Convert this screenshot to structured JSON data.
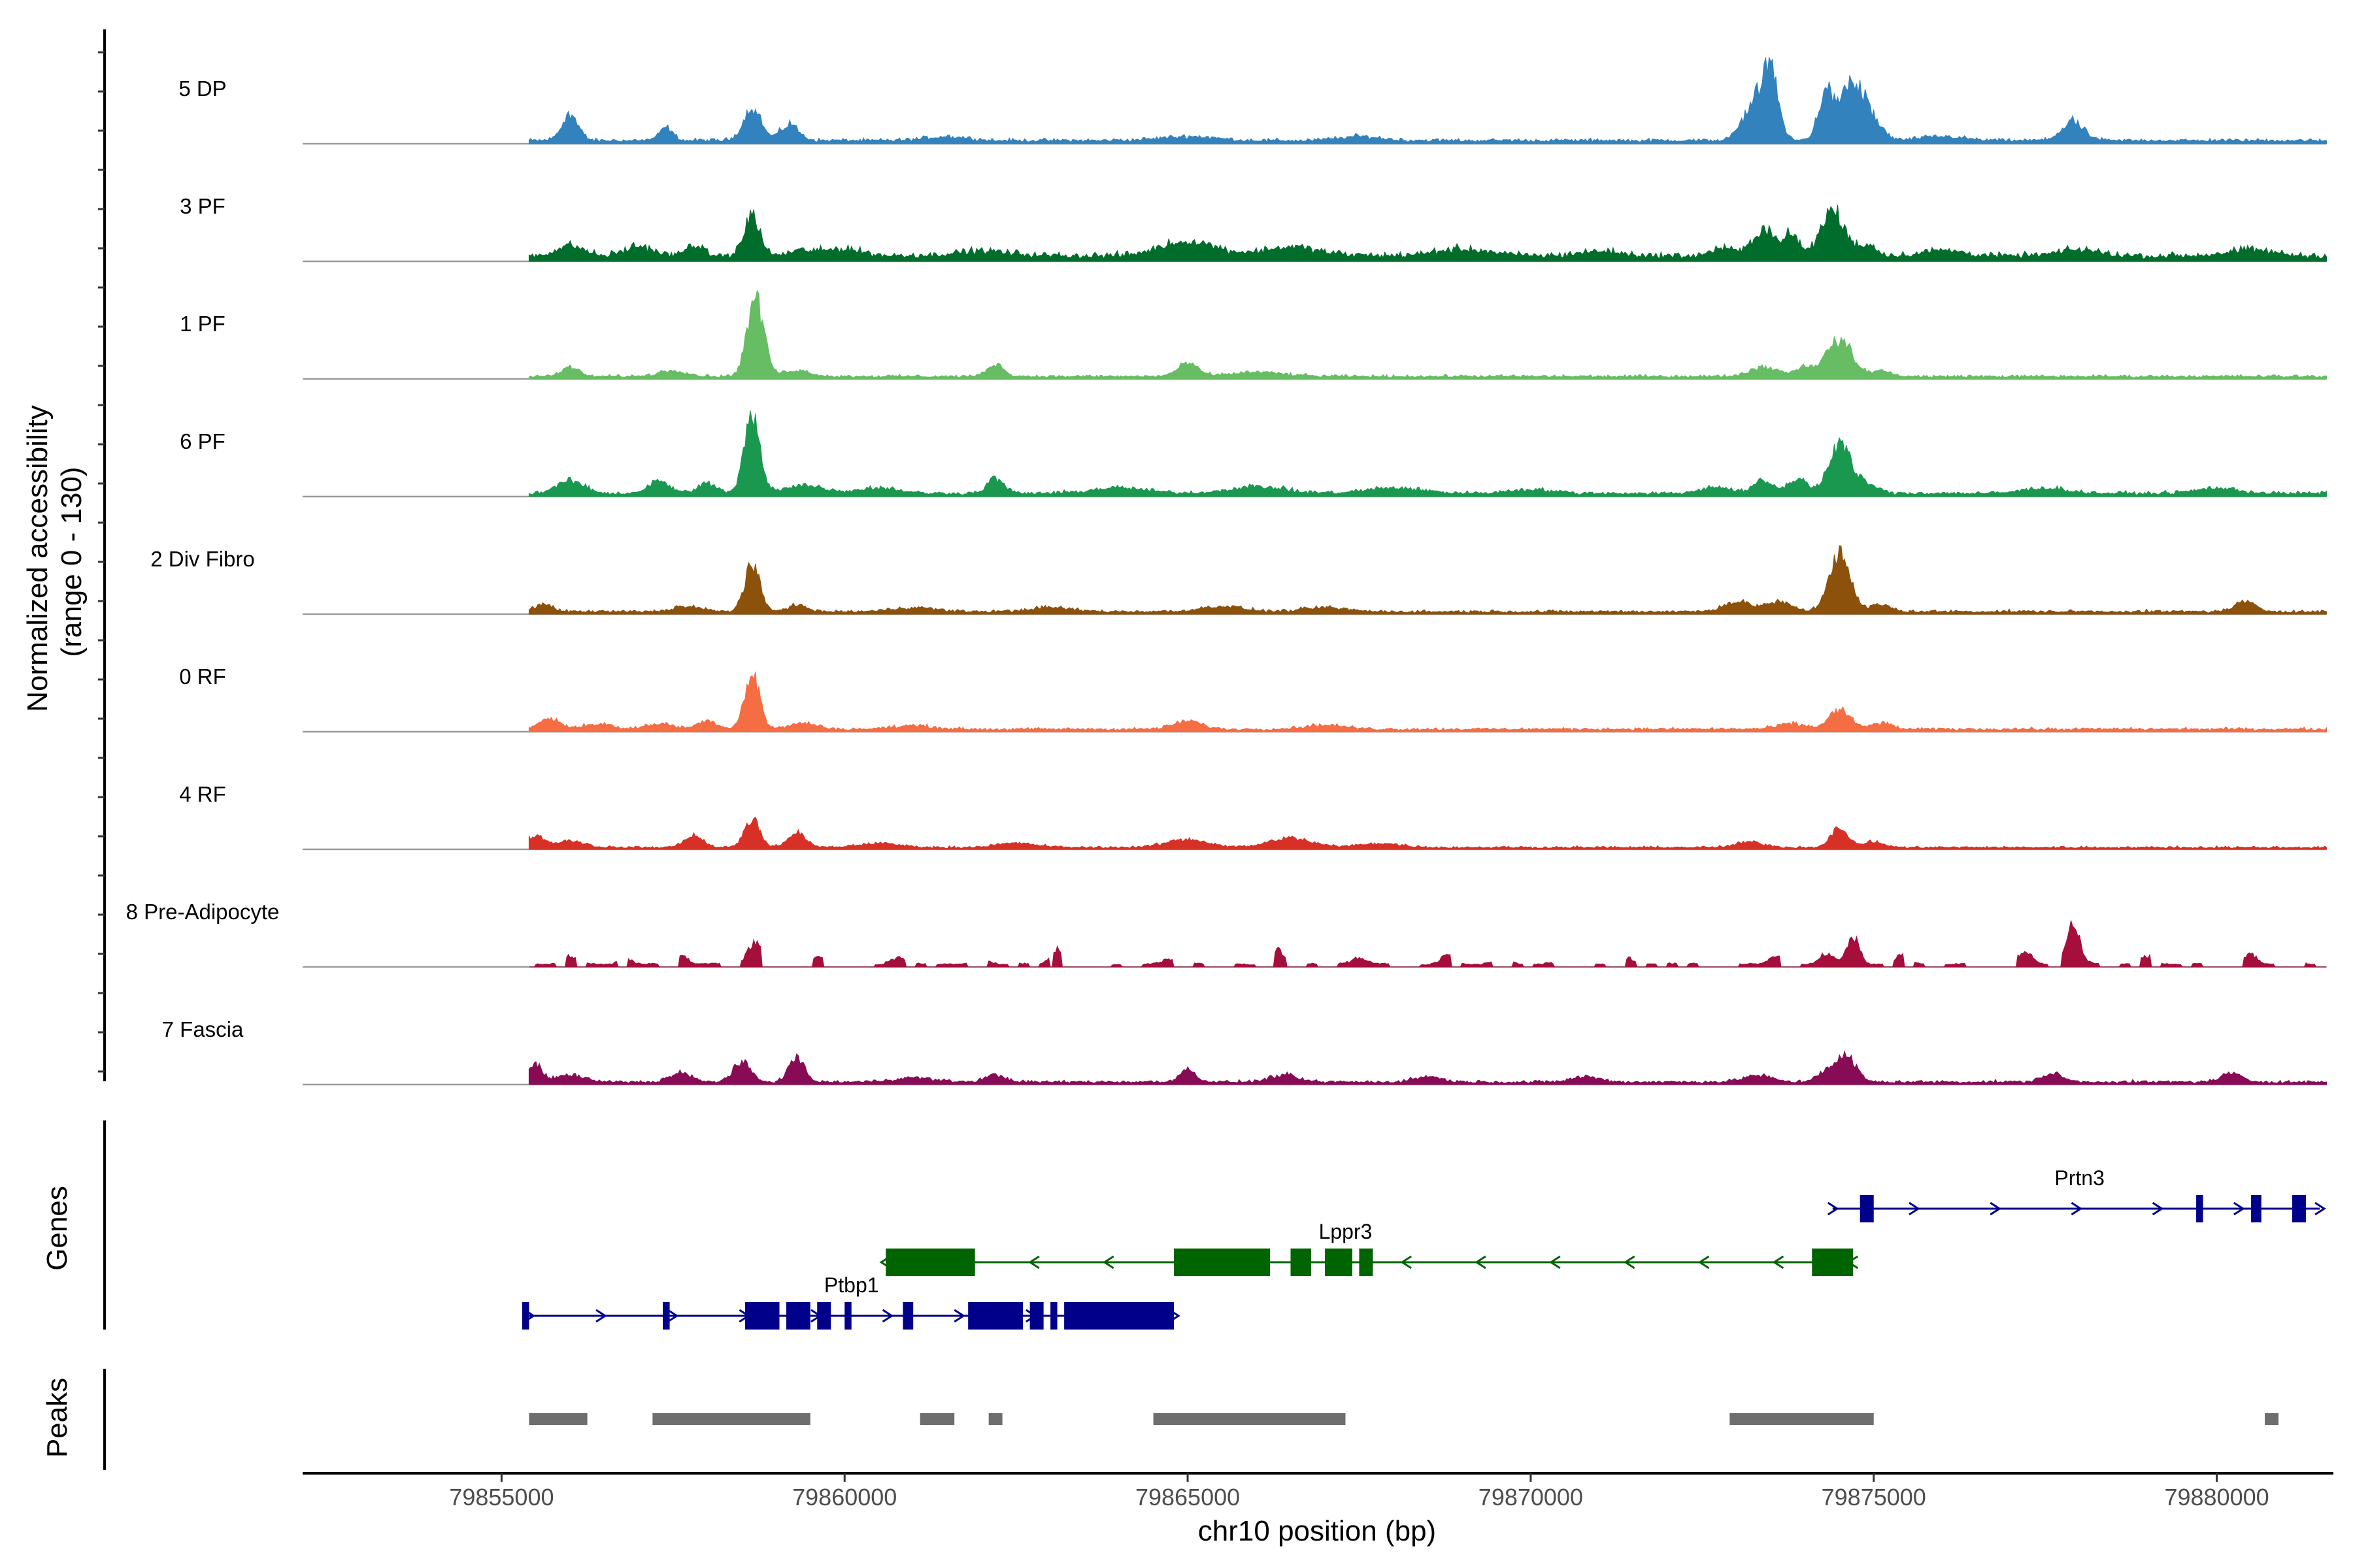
{
  "chart_data": {
    "type": "area",
    "title": "",
    "xlabel": "chr10 position (bp)",
    "ylabel_line1": "Normalized accessibility",
    "ylabel_line2": "(range 0 - 130)",
    "y_range": [
      0,
      130
    ],
    "x_range": [
      79852100,
      79881700
    ],
    "x_ticks": [
      79855000,
      79860000,
      79865000,
      79870000,
      79875000,
      79880000
    ],
    "x_tick_labels": [
      "79855000",
      "79860000",
      "79865000",
      "79870000",
      "79875000",
      "79880000"
    ],
    "signal_start": 79855400,
    "signal_end": 79881600,
    "tracks": [
      {
        "name": "5 DP",
        "color": "#3182bd",
        "baseline": 4,
        "noise": 2,
        "sparse": false,
        "peaks": [
          [
            79856000,
            38,
            120
          ],
          [
            79857400,
            18,
            100
          ],
          [
            79858650,
            48,
            130
          ],
          [
            79859200,
            24,
            130
          ],
          [
            79861500,
            6,
            300
          ],
          [
            79865000,
            6,
            400
          ],
          [
            79867500,
            6,
            300
          ],
          [
            79873300,
            60,
            180
          ],
          [
            79873500,
            75,
            110
          ],
          [
            79874300,
            70,
            110
          ],
          [
            79874700,
            85,
            170
          ],
          [
            79875000,
            20,
            150
          ],
          [
            79876000,
            6,
            300
          ],
          [
            79877900,
            28,
            160
          ]
        ]
      },
      {
        "name": "3 PF",
        "color": "#006d2c",
        "baseline": 7,
        "noise": 3,
        "sparse": false,
        "peaks": [
          [
            79856000,
            15,
            200
          ],
          [
            79857000,
            14,
            200
          ],
          [
            79857800,
            16,
            120
          ],
          [
            79858650,
            60,
            110
          ],
          [
            79859400,
            8,
            200
          ],
          [
            79860000,
            10,
            250
          ],
          [
            79862000,
            7,
            400
          ],
          [
            79865000,
            22,
            400
          ],
          [
            79866500,
            13,
            400
          ],
          [
            79869000,
            10,
            400
          ],
          [
            79871000,
            7,
            300
          ],
          [
            79872800,
            12,
            150
          ],
          [
            79873400,
            38,
            170
          ],
          [
            79873800,
            30,
            110
          ],
          [
            79874400,
            65,
            170
          ],
          [
            79874900,
            15,
            150
          ],
          [
            79876000,
            8,
            300
          ],
          [
            79878000,
            9,
            300
          ],
          [
            79880500,
            9,
            300
          ]
        ]
      },
      {
        "name": "1 PF",
        "color": "#66bd63",
        "baseline": 3,
        "noise": 2,
        "sparse": false,
        "peaks": [
          [
            79856000,
            14,
            120
          ],
          [
            79857500,
            9,
            200
          ],
          [
            79858700,
            115,
            120
          ],
          [
            79859300,
            9,
            200
          ],
          [
            79862200,
            18,
            120
          ],
          [
            79865000,
            18,
            150
          ],
          [
            79866000,
            6,
            400
          ],
          [
            79873400,
            14,
            200
          ],
          [
            79874000,
            14,
            150
          ],
          [
            79874500,
            55,
            180
          ],
          [
            79875100,
            8,
            150
          ]
        ]
      },
      {
        "name": "6 PF",
        "color": "#1a9850",
        "baseline": 4,
        "noise": 2,
        "sparse": false,
        "peaks": [
          [
            79856000,
            18,
            200
          ],
          [
            79857300,
            18,
            150
          ],
          [
            79858000,
            14,
            150
          ],
          [
            79858650,
            115,
            110
          ],
          [
            79859400,
            12,
            300
          ],
          [
            79860500,
            8,
            300
          ],
          [
            79862200,
            22,
            120
          ],
          [
            79864000,
            8,
            400
          ],
          [
            79866000,
            10,
            400
          ],
          [
            79868000,
            8,
            400
          ],
          [
            79870000,
            6,
            300
          ],
          [
            79872700,
            10,
            200
          ],
          [
            79873400,
            18,
            150
          ],
          [
            79873900,
            22,
            130
          ],
          [
            79874500,
            72,
            160
          ],
          [
            79874900,
            14,
            150
          ],
          [
            79877500,
            8,
            300
          ],
          [
            79880000,
            8,
            300
          ]
        ]
      },
      {
        "name": "2 Div Fibro",
        "color": "#8c510a",
        "baseline": 3,
        "noise": 2,
        "sparse": false,
        "peaks": [
          [
            79855600,
            10,
            150
          ],
          [
            79857700,
            8,
            200
          ],
          [
            79858650,
            68,
            110
          ],
          [
            79859300,
            9,
            150
          ],
          [
            79861000,
            6,
            300
          ],
          [
            79863000,
            6,
            300
          ],
          [
            79865500,
            8,
            300
          ],
          [
            79867000,
            6,
            300
          ],
          [
            79873000,
            14,
            200
          ],
          [
            79873600,
            14,
            200
          ],
          [
            79874500,
            90,
            150
          ],
          [
            79875100,
            10,
            150
          ],
          [
            79880400,
            14,
            150
          ]
        ]
      },
      {
        "name": "0 RF",
        "color": "#f46d43",
        "baseline": 3,
        "noise": 2,
        "sparse": false,
        "peaks": [
          [
            79855700,
            16,
            150
          ],
          [
            79856400,
            8,
            200
          ],
          [
            79857300,
            8,
            200
          ],
          [
            79858000,
            12,
            150
          ],
          [
            79858650,
            80,
            110
          ],
          [
            79859400,
            9,
            200
          ],
          [
            79861000,
            5,
            300
          ],
          [
            79865000,
            12,
            200
          ],
          [
            79867000,
            6,
            300
          ],
          [
            79873800,
            8,
            200
          ],
          [
            79874500,
            30,
            150
          ],
          [
            79875100,
            9,
            150
          ]
        ]
      },
      {
        "name": "4 RF",
        "color": "#d73027",
        "baseline": 2,
        "noise": 2,
        "sparse": false,
        "peaks": [
          [
            79855500,
            18,
            120
          ],
          [
            79856000,
            10,
            200
          ],
          [
            79857800,
            18,
            130
          ],
          [
            79858650,
            42,
            110
          ],
          [
            79859300,
            22,
            130
          ],
          [
            79860500,
            6,
            300
          ],
          [
            79862500,
            6,
            300
          ],
          [
            79865000,
            12,
            300
          ],
          [
            79866500,
            14,
            300
          ],
          [
            79867800,
            6,
            300
          ],
          [
            79873200,
            8,
            200
          ],
          [
            79874500,
            28,
            130
          ],
          [
            79875000,
            8,
            150
          ]
        ]
      },
      {
        "name": "8 Pre-Adipocyte",
        "color": "#a50f3b",
        "baseline": 0,
        "noise": 6,
        "sparse": true,
        "peaks": [
          [
            79856000,
            12,
            100
          ],
          [
            79856800,
            10,
            100
          ],
          [
            79857600,
            14,
            100
          ],
          [
            79858700,
            32,
            100
          ],
          [
            79859600,
            12,
            100
          ],
          [
            79860800,
            8,
            100
          ],
          [
            79862000,
            10,
            100
          ],
          [
            79863100,
            24,
            90
          ],
          [
            79864800,
            6,
            200
          ],
          [
            79866300,
            22,
            90
          ],
          [
            79867500,
            10,
            100
          ],
          [
            79868800,
            16,
            100
          ],
          [
            79869600,
            12,
            100
          ],
          [
            79871400,
            10,
            100
          ],
          [
            79872800,
            12,
            100
          ],
          [
            79873600,
            14,
            100
          ],
          [
            79874300,
            16,
            100
          ],
          [
            79874700,
            40,
            90
          ],
          [
            79875400,
            14,
            100
          ],
          [
            79877200,
            18,
            100
          ],
          [
            79877900,
            62,
            100
          ],
          [
            79879000,
            10,
            100
          ],
          [
            79880500,
            14,
            100
          ],
          [
            79881100,
            18,
            100
          ]
        ]
      },
      {
        "name": "7 Fascia",
        "color": "#880b56",
        "baseline": 3,
        "noise": 2,
        "sparse": false,
        "peaks": [
          [
            79855500,
            25,
            100
          ],
          [
            79856000,
            10,
            200
          ],
          [
            79857600,
            14,
            150
          ],
          [
            79858500,
            28,
            130
          ],
          [
            79859300,
            36,
            110
          ],
          [
            79861000,
            6,
            300
          ],
          [
            79862200,
            10,
            150
          ],
          [
            79865000,
            18,
            120
          ],
          [
            79866400,
            10,
            200
          ],
          [
            79868500,
            8,
            200
          ],
          [
            79870800,
            8,
            200
          ],
          [
            79873300,
            10,
            200
          ],
          [
            79874300,
            16,
            130
          ],
          [
            79874600,
            38,
            140
          ],
          [
            79877600,
            12,
            150
          ],
          [
            79880200,
            12,
            150
          ]
        ]
      }
    ],
    "genes": [
      {
        "name": "Ptbp1",
        "strand": "+",
        "color": "#00008b",
        "start": 79855400,
        "end": 79864800,
        "row": 2,
        "label_pos": 79860100,
        "exons": [
          [
            79855300,
            79855400
          ],
          [
            79857350,
            79857450
          ],
          [
            79858550,
            79859050
          ],
          [
            79859150,
            79859500
          ],
          [
            79859600,
            79859800
          ],
          [
            79860000,
            79860100
          ],
          [
            79860850,
            79861000
          ],
          [
            79861800,
            79862600
          ],
          [
            79862700,
            79862900
          ],
          [
            79863000,
            79863100
          ],
          [
            79863200,
            79864800
          ]
        ]
      },
      {
        "name": "Lppr3",
        "strand": "-",
        "color": "#006400",
        "start": 79860600,
        "end": 79874700,
        "row": 1,
        "label_pos": 79867300,
        "exons": [
          [
            79860600,
            79861900
          ],
          [
            79864800,
            79866200
          ],
          [
            79866500,
            79866800
          ],
          [
            79867000,
            79867400
          ],
          [
            79867500,
            79867700
          ],
          [
            79874100,
            79874700
          ]
        ]
      },
      {
        "name": "Prtn3",
        "strand": "+",
        "color": "#00008b",
        "start": 79874400,
        "end": 79881500,
        "row": 0,
        "label_pos": 79878000,
        "exons": [
          [
            79874800,
            79875000
          ],
          [
            79879700,
            79879800
          ],
          [
            79880500,
            79880650
          ],
          [
            79881100,
            79881300
          ]
        ]
      }
    ],
    "peaks_track": [
      [
        79855400,
        79856250
      ],
      [
        79857200,
        79859500
      ],
      [
        79861100,
        79861600
      ],
      [
        79862100,
        79862300
      ],
      [
        79864500,
        79867300
      ],
      [
        79872900,
        79875000
      ],
      [
        79880700,
        79880900
      ]
    ],
    "labels": {
      "genes_panel": "Genes",
      "peaks_panel": "Peaks"
    }
  }
}
